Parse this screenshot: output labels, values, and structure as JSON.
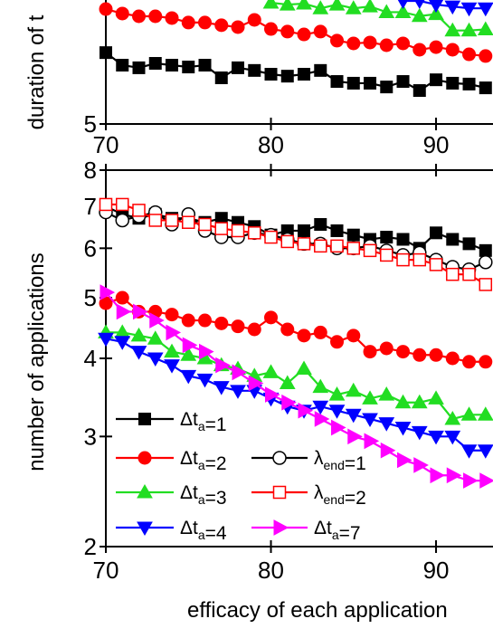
{
  "chart_data": [
    {
      "type": "line",
      "y_label": "duration of t",
      "log_y": true,
      "x": [
        70,
        71,
        72,
        73,
        74,
        75,
        76,
        77,
        78,
        79,
        80,
        81,
        82,
        83,
        84,
        85,
        86,
        87,
        88,
        89,
        90,
        91,
        92,
        93
      ],
      "xlim": [
        70,
        93.45
      ],
      "ylim": [
        5,
        10
      ],
      "xticks": [
        70,
        80,
        90
      ],
      "yticks": [
        5
      ],
      "series": [
        {
          "color": "#000000",
          "marker": "square",
          "filled": true,
          "values": [
            7.43,
            6.93,
            6.83,
            7.0,
            6.93,
            6.86,
            6.93,
            6.46,
            6.83,
            6.73,
            6.59,
            6.52,
            6.59,
            6.73,
            6.33,
            6.27,
            6.27,
            6.14,
            6.33,
            6.02,
            6.39,
            6.27,
            6.24,
            6.11
          ]
        },
        {
          "color": "#ff0000",
          "marker": "circle",
          "filled": true,
          "values": [
            9.46,
            9.23,
            9.09,
            9.09,
            9.0,
            8.78,
            8.78,
            8.65,
            8.56,
            8.91,
            8.47,
            8.35,
            8.22,
            8.35,
            7.94,
            7.82,
            7.86,
            7.74,
            7.82,
            7.55,
            7.66,
            7.55,
            7.36,
            7.29
          ]
        },
        {
          "color": "#22dd22",
          "marker": "up",
          "filled": true,
          "values": [
            null,
            null,
            null,
            null,
            null,
            null,
            null,
            null,
            null,
            null,
            9.8,
            9.7,
            9.75,
            9.5,
            9.7,
            9.5,
            9.6,
            9.3,
            9.3,
            9.1,
            9.2,
            8.4,
            8.4,
            8.45
          ]
        },
        {
          "color": "#0000ff",
          "marker": "down",
          "filled": true,
          "values": [
            null,
            null,
            null,
            null,
            null,
            null,
            null,
            null,
            null,
            null,
            null,
            null,
            null,
            null,
            null,
            null,
            null,
            null,
            9.9,
            9.9,
            9.7,
            9.6,
            9.5,
            9.5
          ]
        }
      ]
    },
    {
      "type": "line",
      "y_label": "number of applications",
      "x_label": "efficacy of each application",
      "log_y": true,
      "x": [
        70,
        71,
        72,
        73,
        74,
        75,
        76,
        77,
        78,
        79,
        80,
        81,
        82,
        83,
        84,
        85,
        86,
        87,
        88,
        89,
        90,
        91,
        92,
        93
      ],
      "xlim": [
        70,
        93.45
      ],
      "ylim": [
        2,
        8
      ],
      "xticks": [
        70,
        80,
        90
      ],
      "yticks": [
        2,
        3,
        4,
        5,
        6,
        7,
        8
      ],
      "series": [
        {
          "name": "Δt_a=1",
          "color": "#000000",
          "marker": "square",
          "filled": true,
          "values": [
            7.0,
            6.8,
            6.7,
            6.8,
            6.7,
            6.7,
            6.6,
            6.7,
            6.6,
            6.5,
            6.3,
            6.4,
            6.4,
            6.55,
            6.4,
            6.3,
            6.2,
            6.25,
            6.2,
            6.0,
            6.35,
            6.2,
            6.1,
            5.95
          ]
        },
        {
          "name": "Δt_a=2",
          "color": "#ff0000",
          "marker": "circle",
          "filled": true,
          "values": [
            4.9,
            5.0,
            4.75,
            4.75,
            4.7,
            4.6,
            4.6,
            4.55,
            4.5,
            4.45,
            4.65,
            4.45,
            4.35,
            4.4,
            4.25,
            4.35,
            4.1,
            4.15,
            4.1,
            4.05,
            4.05,
            4.0,
            3.95,
            3.95
          ]
        },
        {
          "name": "Δt_a=3",
          "color": "#22dd22",
          "marker": "up",
          "filled": true,
          "values": [
            4.4,
            4.4,
            4.35,
            4.3,
            4.1,
            4.05,
            4.0,
            3.9,
            3.85,
            3.75,
            3.8,
            3.65,
            3.85,
            3.6,
            3.5,
            3.55,
            3.45,
            3.5,
            3.4,
            3.4,
            3.45,
            3.2,
            3.25,
            3.25
          ]
        },
        {
          "name": "Δt_a=4",
          "color": "#0000ff",
          "marker": "down",
          "filled": true,
          "values": [
            4.3,
            4.25,
            4.1,
            4.0,
            3.9,
            3.75,
            3.7,
            3.6,
            3.55,
            3.55,
            3.45,
            3.35,
            3.3,
            3.35,
            3.3,
            3.25,
            3.2,
            3.15,
            3.1,
            3.05,
            3.0,
            3.0,
            2.85,
            2.85
          ]
        },
        {
          "name": "λ_{end}=1",
          "color": "#000000",
          "marker": "circle",
          "filled": false,
          "values": [
            6.85,
            6.65,
            6.75,
            6.85,
            6.55,
            6.8,
            6.4,
            6.25,
            6.25,
            6.35,
            6.3,
            6.2,
            6.1,
            6.1,
            6.0,
            6.0,
            6.05,
            5.95,
            5.85,
            5.9,
            5.75,
            5.6,
            5.55,
            5.7
          ]
        },
        {
          "name": "λ_{end}=2",
          "color": "#ff0000",
          "marker": "square",
          "filled": false,
          "values": [
            7.05,
            7.05,
            6.9,
            6.65,
            6.65,
            6.6,
            6.55,
            6.45,
            6.4,
            6.35,
            6.25,
            6.15,
            6.1,
            6.05,
            6.05,
            6.0,
            5.95,
            5.85,
            5.75,
            5.75,
            5.65,
            5.45,
            5.45,
            5.25
          ]
        },
        {
          "name": "Δt_a=7",
          "color": "#ff00ff",
          "marker": "right",
          "filled": true,
          "values": [
            5.1,
            4.75,
            4.75,
            4.6,
            4.4,
            4.2,
            4.1,
            3.9,
            3.8,
            3.65,
            3.5,
            3.4,
            3.3,
            3.2,
            3.1,
            3.0,
            2.95,
            2.85,
            2.75,
            2.7,
            2.6,
            2.6,
            2.55,
            2.55
          ]
        }
      ]
    }
  ]
}
